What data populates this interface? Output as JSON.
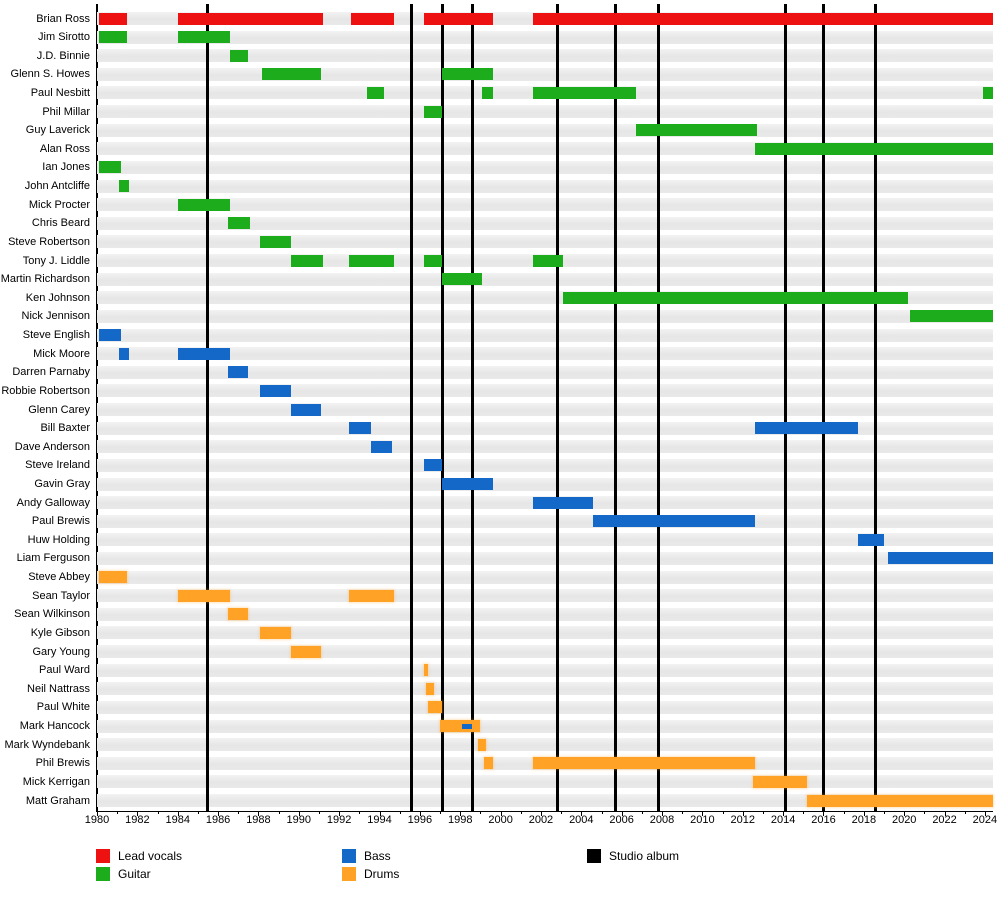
{
  "chart_data": {
    "type": "bar",
    "subtype": "band-member-timeline-gantt",
    "title": "",
    "axis": {
      "min": 1980,
      "max": 2024,
      "right_edge": 2024.4,
      "tick_interval": 2,
      "tick_labels": [
        "1980",
        "1982",
        "1984",
        "1986",
        "1988",
        "1990",
        "1992",
        "1994",
        "1996",
        "1998",
        "2000",
        "2002",
        "2004",
        "2006",
        "2008",
        "2010",
        "2012",
        "2014",
        "2016",
        "2018",
        "2020",
        "2022",
        "2024"
      ]
    },
    "roles": {
      "lead_vocals": {
        "label": "Lead vocals",
        "color": "#EE1111"
      },
      "guitar": {
        "label": "Guitar",
        "color": "#1CAC1C"
      },
      "bass": {
        "label": "Bass",
        "color": "#1468C8"
      },
      "drums": {
        "label": "Drums",
        "color": "#FFA226"
      },
      "album": {
        "label": "Studio album",
        "color": "#000000"
      }
    },
    "members": [
      {
        "name": "Brian Ross",
        "role": "lead_vocals",
        "periods": [
          [
            1980.1,
            1981.5
          ],
          [
            1984.0,
            1991.2
          ],
          [
            1992.6,
            1994.7
          ],
          [
            1996.2,
            1999.6
          ],
          [
            2001.6,
            2024.4
          ]
        ]
      },
      {
        "name": "Jim Sirotto",
        "role": "guitar",
        "periods": [
          [
            1980.1,
            1981.5
          ],
          [
            1984.0,
            1986.6
          ]
        ]
      },
      {
        "name": "J.D. Binnie",
        "role": "guitar",
        "periods": [
          [
            1986.6,
            1987.5
          ]
        ]
      },
      {
        "name": "Glenn S. Howes",
        "role": "guitar",
        "periods": [
          [
            1988.2,
            1991.1
          ],
          [
            1997.1,
            1999.6
          ]
        ]
      },
      {
        "name": "Paul Nesbitt",
        "role": "guitar",
        "periods": [
          [
            1993.4,
            1994.2
          ],
          [
            1999.1,
            1999.6
          ],
          [
            2001.6,
            2006.7
          ],
          [
            2023.9,
            2024.4
          ]
        ]
      },
      {
        "name": "Phil Millar",
        "role": "guitar",
        "periods": [
          [
            1996.2,
            1997.1
          ]
        ]
      },
      {
        "name": "Guy Laverick",
        "role": "guitar",
        "periods": [
          [
            2006.7,
            2012.7
          ]
        ]
      },
      {
        "name": "Alan Ross",
        "role": "guitar",
        "periods": [
          [
            2012.6,
            2024.4
          ]
        ]
      },
      {
        "name": "Ian Jones",
        "role": "guitar",
        "periods": [
          [
            1980.1,
            1981.2
          ]
        ]
      },
      {
        "name": "John Antcliffe",
        "role": "guitar",
        "periods": [
          [
            1981.1,
            1981.6
          ]
        ]
      },
      {
        "name": "Mick Procter",
        "role": "guitar",
        "periods": [
          [
            1984.0,
            1986.6
          ]
        ]
      },
      {
        "name": "Chris Beard",
        "role": "guitar",
        "periods": [
          [
            1986.5,
            1987.6
          ]
        ]
      },
      {
        "name": "Steve Robertson",
        "role": "guitar",
        "periods": [
          [
            1988.1,
            1989.6
          ]
        ]
      },
      {
        "name": "Tony J. Liddle",
        "role": "guitar",
        "periods": [
          [
            1989.6,
            1991.2
          ],
          [
            1992.5,
            1994.7
          ],
          [
            1996.2,
            1997.1
          ],
          [
            2001.6,
            2003.1
          ]
        ]
      },
      {
        "name": "Martin Richardson",
        "role": "guitar",
        "periods": [
          [
            1997.1,
            1999.1
          ]
        ]
      },
      {
        "name": "Ken Johnson",
        "role": "guitar",
        "periods": [
          [
            2003.1,
            2020.2
          ]
        ]
      },
      {
        "name": "Nick Jennison",
        "role": "guitar",
        "periods": [
          [
            2020.3,
            2024.4
          ]
        ]
      },
      {
        "name": "Steve English",
        "role": "bass",
        "periods": [
          [
            1980.1,
            1981.2
          ]
        ]
      },
      {
        "name": "Mick Moore",
        "role": "bass",
        "periods": [
          [
            1981.1,
            1981.6
          ],
          [
            1984.0,
            1986.6
          ]
        ]
      },
      {
        "name": "Darren Parnaby",
        "role": "bass",
        "periods": [
          [
            1986.5,
            1987.5
          ]
        ]
      },
      {
        "name": "Robbie Robertson",
        "role": "bass",
        "periods": [
          [
            1988.1,
            1989.6
          ]
        ]
      },
      {
        "name": "Glenn Carey",
        "role": "bass",
        "periods": [
          [
            1989.6,
            1991.1
          ]
        ]
      },
      {
        "name": "Bill Baxter",
        "role": "bass",
        "periods": [
          [
            1992.5,
            1993.6
          ],
          [
            2012.6,
            2017.7
          ]
        ]
      },
      {
        "name": "Dave Anderson",
        "role": "bass",
        "periods": [
          [
            1993.6,
            1994.6
          ]
        ]
      },
      {
        "name": "Steve Ireland",
        "role": "bass",
        "periods": [
          [
            1996.2,
            1997.1
          ]
        ]
      },
      {
        "name": "Gavin Gray",
        "role": "bass",
        "periods": [
          [
            1997.1,
            1999.6
          ]
        ]
      },
      {
        "name": "Andy Galloway",
        "role": "bass",
        "periods": [
          [
            2001.6,
            2004.6
          ]
        ]
      },
      {
        "name": "Paul Brewis",
        "role": "bass",
        "periods": [
          [
            2004.6,
            2012.6
          ]
        ]
      },
      {
        "name": "Huw Holding",
        "role": "bass",
        "periods": [
          [
            2017.7,
            2019.0
          ]
        ]
      },
      {
        "name": "Liam Ferguson",
        "role": "bass",
        "periods": [
          [
            2019.2,
            2024.4
          ]
        ]
      },
      {
        "name": "Steve Abbey",
        "role": "drums",
        "periods": [
          [
            1980.1,
            1981.5
          ]
        ]
      },
      {
        "name": "Sean Taylor",
        "role": "drums",
        "periods": [
          [
            1984.0,
            1986.6
          ],
          [
            1992.5,
            1994.7
          ]
        ]
      },
      {
        "name": "Sean Wilkinson",
        "role": "drums",
        "periods": [
          [
            1986.5,
            1987.5
          ]
        ]
      },
      {
        "name": "Kyle Gibson",
        "role": "drums",
        "periods": [
          [
            1988.1,
            1989.6
          ]
        ]
      },
      {
        "name": "Gary Young",
        "role": "drums",
        "periods": [
          [
            1989.6,
            1991.1
          ]
        ]
      },
      {
        "name": "Paul Ward",
        "role": "drums",
        "periods": [
          [
            1996.2,
            1996.4
          ]
        ]
      },
      {
        "name": "Neil Nattrass",
        "role": "drums",
        "periods": [
          [
            1996.3,
            1996.7
          ]
        ]
      },
      {
        "name": "Paul White",
        "role": "drums",
        "periods": [
          [
            1996.4,
            1997.1
          ]
        ]
      },
      {
        "name": "Mark Hancock",
        "role": "drums",
        "periods": [
          [
            1997.0,
            1999.0
          ]
        ],
        "secondary": {
          "role": "bass",
          "periods": [
            [
              1998.1,
              1998.6
            ]
          ]
        }
      },
      {
        "name": "Mark Wyndebank",
        "role": "drums",
        "periods": [
          [
            1998.9,
            1999.3
          ]
        ]
      },
      {
        "name": "Phil Brewis",
        "role": "drums",
        "periods": [
          [
            1999.2,
            1999.6
          ],
          [
            2001.6,
            2012.6
          ]
        ]
      },
      {
        "name": "Mick Kerrigan",
        "role": "drums",
        "periods": [
          [
            2012.5,
            2015.2
          ]
        ]
      },
      {
        "name": "Matt Graham",
        "role": "drums",
        "periods": [
          [
            2015.2,
            2024.4
          ]
        ]
      }
    ],
    "albums": {
      "label": "Studio album",
      "years": [
        1985.5,
        1995.6,
        1997.1,
        1998.6,
        2002.8,
        2005.7,
        2007.8,
        2014.1,
        2016.0,
        2018.6
      ]
    },
    "legend": [
      {
        "label": "Lead vocals",
        "role": "lead_vocals",
        "col": 0,
        "row": 0
      },
      {
        "label": "Guitar",
        "role": "guitar",
        "col": 0,
        "row": 1
      },
      {
        "label": "Bass",
        "role": "bass",
        "col": 1,
        "row": 0
      },
      {
        "label": "Drums",
        "role": "drums",
        "col": 1,
        "row": 1
      },
      {
        "label": "Studio album",
        "role": "album",
        "col": 2,
        "row": 0
      }
    ]
  },
  "styles": {
    "background": "#FFFFFF",
    "row_stripe": "#E8E8E8",
    "text": "#000000"
  }
}
